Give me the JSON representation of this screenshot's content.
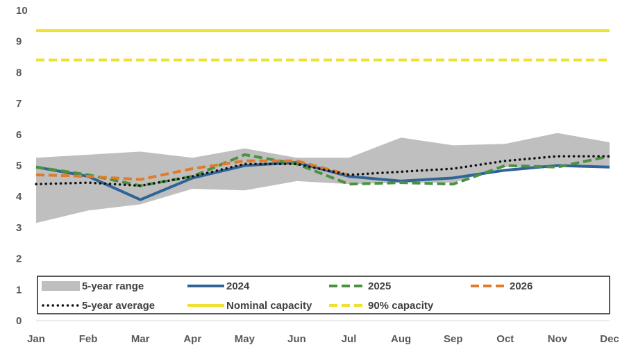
{
  "chart_data": {
    "type": "line",
    "categories": [
      "Jan",
      "Feb",
      "Mar",
      "Apr",
      "May",
      "Jun",
      "Jul",
      "Aug",
      "Sep",
      "Oct",
      "Nov",
      "Dec"
    ],
    "ylim": [
      0,
      10
    ],
    "y_ticks": [
      "0",
      "1",
      "2",
      "3",
      "4",
      "5",
      "6",
      "7",
      "8",
      "9",
      "10"
    ],
    "grid": false,
    "legend_position": "bottom-inside",
    "range": {
      "name": "5-year range",
      "color": "#bfbfbf",
      "low": [
        3.15,
        3.55,
        3.75,
        4.25,
        4.2,
        4.5,
        4.4,
        4.45,
        4.45,
        4.95,
        4.95,
        4.95
      ],
      "high": [
        5.25,
        5.35,
        5.45,
        5.25,
        5.55,
        5.25,
        5.25,
        5.9,
        5.65,
        5.7,
        6.05,
        5.75
      ]
    },
    "series": [
      {
        "name": "2024",
        "color": "#2e6496",
        "dash": "solid",
        "values": [
          4.95,
          4.65,
          3.9,
          4.6,
          5.0,
          5.1,
          4.65,
          4.5,
          4.6,
          4.85,
          5.0,
          4.95
        ]
      },
      {
        "name": "2025",
        "color": "#4a9140",
        "dash": "dashed",
        "values": [
          4.95,
          4.7,
          4.35,
          4.65,
          5.35,
          5.05,
          4.4,
          4.45,
          4.4,
          5.0,
          4.95,
          5.3
        ]
      },
      {
        "name": "2026",
        "color": "#e07b2b",
        "dash": "dashed",
        "values": [
          4.7,
          4.65,
          4.55,
          4.9,
          5.15,
          5.15,
          4.7,
          null,
          null,
          null,
          null,
          null
        ]
      },
      {
        "name": "5-year average",
        "color": "#111111",
        "dash": "dotted",
        "values": [
          4.4,
          4.45,
          4.35,
          4.65,
          5.05,
          5.05,
          4.7,
          4.8,
          4.9,
          5.15,
          5.3,
          5.3
        ]
      },
      {
        "name": "Nominal capacity",
        "color": "#f0e130",
        "dash": "solid",
        "values": [
          9.35,
          9.35,
          9.35,
          9.35,
          9.35,
          9.35,
          9.35,
          9.35,
          9.35,
          9.35,
          9.35,
          9.35
        ]
      },
      {
        "name": "90% capacity",
        "color": "#f0e130",
        "dash": "dashed",
        "values": [
          8.4,
          8.4,
          8.4,
          8.4,
          8.4,
          8.4,
          8.4,
          8.4,
          8.4,
          8.4,
          8.4,
          8.4
        ]
      }
    ],
    "legend": [
      {
        "label": "5-year range",
        "kind": "area"
      },
      {
        "label": "2024",
        "kind": "2024"
      },
      {
        "label": "2025",
        "kind": "2025"
      },
      {
        "label": "2026",
        "kind": "2026"
      },
      {
        "label": "5-year average",
        "kind": "5-year average"
      },
      {
        "label": "Nominal capacity",
        "kind": "Nominal capacity"
      },
      {
        "label": "90% capacity",
        "kind": "90% capacity"
      }
    ]
  }
}
